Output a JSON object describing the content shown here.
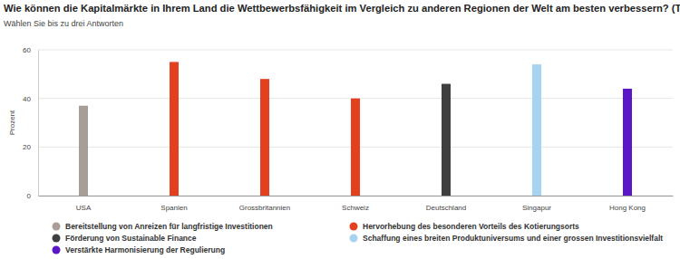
{
  "chart_data": {
    "type": "bar",
    "title": "Wie können die Kapitalmärkte in Ihrem Land die Wettbewerbsfähigkeit im Vergleich zu anderen Regionen der Welt am besten verbessern? (Top-Nennung)",
    "subtitle": "Wählen Sie bis zu drei Antworten",
    "y_label": "Prozent",
    "categories": [
      "USA",
      "Spanien",
      "Grossbritannien",
      "Schweiz",
      "Deutschland",
      "Singapur",
      "Hong Kong"
    ],
    "series": [
      {
        "name": "Bereitstellung von Anreizen für langfristige Investitionen",
        "color": "#a89e97",
        "values": [
          37,
          null,
          null,
          null,
          null,
          null,
          null
        ]
      },
      {
        "name": "Hervorhebung des besonderen Vorteils des Kotierungsorts",
        "color": "#e2401f",
        "values": [
          null,
          55,
          48,
          40,
          null,
          null,
          null
        ]
      },
      {
        "name": "Förderung von Sustainable Finance",
        "color": "#3f3f3f",
        "values": [
          null,
          null,
          null,
          null,
          46,
          null,
          null
        ]
      },
      {
        "name": "Schaffung eines breiten Produktuniversums und einer grossen Investitionsvielfalt",
        "color": "#a8d3ef",
        "values": [
          null,
          null,
          null,
          null,
          null,
          54,
          null
        ]
      },
      {
        "name": "Verstärkte Harmonisierung der Regulierung",
        "color": "#5a17c8",
        "values": [
          null,
          null,
          null,
          null,
          null,
          null,
          44
        ]
      }
    ],
    "ylim": [
      0,
      60
    ],
    "yticks": [
      0,
      20,
      40,
      60
    ],
    "grid": true
  }
}
